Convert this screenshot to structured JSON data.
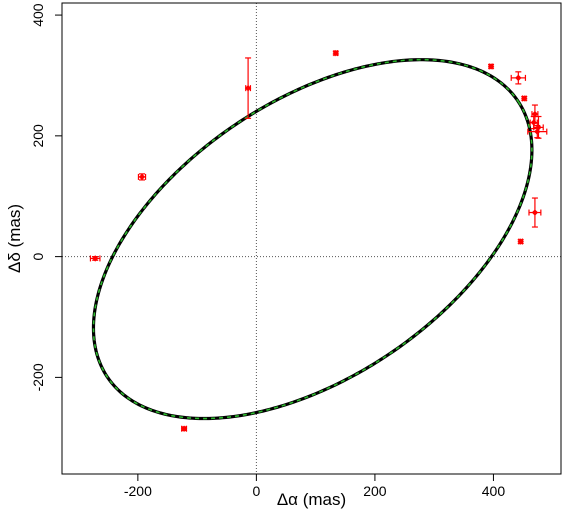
{
  "chart_data": {
    "type": "scatter",
    "title": "",
    "xlabel": "Δα (mas)",
    "ylabel": "Δδ (mas)",
    "xlim": [
      -328,
      514
    ],
    "ylim": [
      -360,
      420
    ],
    "xticks": [
      -200,
      0,
      200,
      400
    ],
    "yticks": [
      -200,
      0,
      200,
      400
    ],
    "reference_lines": {
      "x": 0,
      "y": 0,
      "style": "dotted"
    },
    "orbit": {
      "center": [
        95,
        29
      ],
      "semi_major": 415,
      "semi_minor": 230,
      "position_angle_deg": 33,
      "colors": {
        "solid": "#000000",
        "dashed": "#2db82d"
      }
    },
    "points": [
      {
        "x": -272,
        "y": -3,
        "xerr": 8,
        "yerr": 3
      },
      {
        "x": -193,
        "y": 132,
        "xerr": 6,
        "yerr": 5
      },
      {
        "x": -122,
        "y": -285,
        "xerr": 4,
        "yerr": 3
      },
      {
        "x": -14,
        "y": 279,
        "xerr": 4,
        "yerr": 50
      },
      {
        "x": 134,
        "y": 337,
        "xerr": 3,
        "yerr": 3
      },
      {
        "x": 396,
        "y": 315,
        "xerr": 3,
        "yerr": 3
      },
      {
        "x": 442,
        "y": 296,
        "xerr": 12,
        "yerr": 10
      },
      {
        "x": 452,
        "y": 262,
        "xerr": 3,
        "yerr": 3
      },
      {
        "x": 470,
        "y": 236,
        "xerr": 5,
        "yerr": 15
      },
      {
        "x": 468,
        "y": 222,
        "xerr": 6,
        "yerr": 10
      },
      {
        "x": 476,
        "y": 214,
        "xerr": 8,
        "yerr": 18
      },
      {
        "x": 474,
        "y": 207,
        "xerr": 16,
        "yerr": 10
      },
      {
        "x": 470,
        "y": 73,
        "xerr": 10,
        "yerr": 24
      },
      {
        "x": 446,
        "y": 25,
        "xerr": 3,
        "yerr": 3
      }
    ],
    "point_color": "#ff0000",
    "grid": false,
    "legend": "none"
  }
}
